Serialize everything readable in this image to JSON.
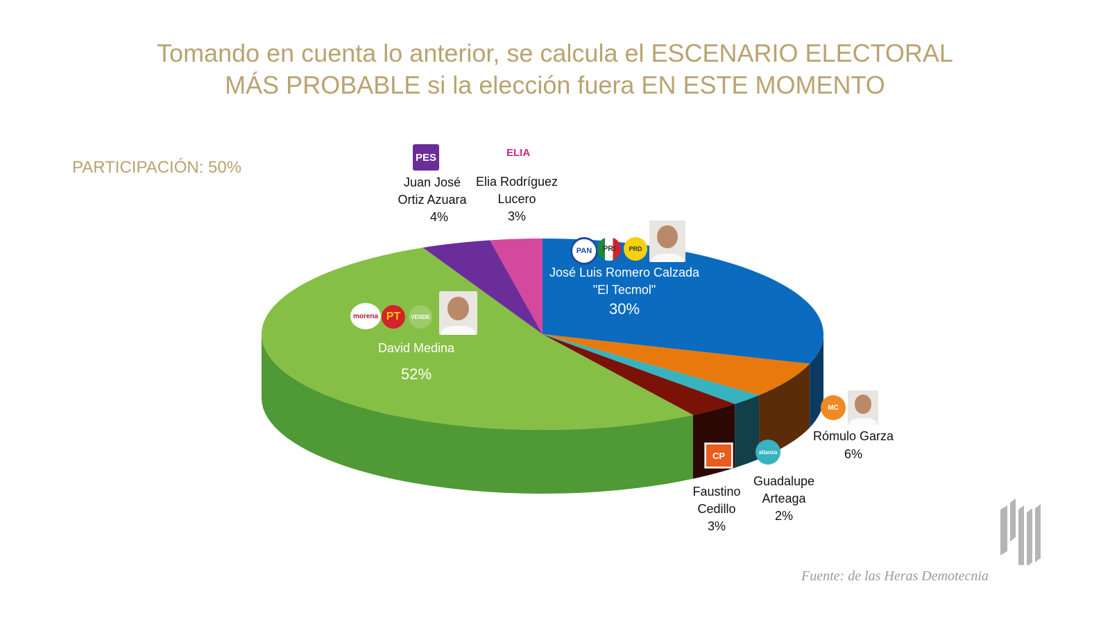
{
  "title_line1": "Tomando en cuenta lo anterior, se calcula el ESCENARIO ELECTORAL",
  "title_line2": "MÁS PROBABLE si la elección fuera EN ESTE MOMENTO",
  "participation": "PARTICIPACIÓN: 50%",
  "source": "Fuente: de las Heras Demotecnia",
  "logos": {
    "pes": "PES",
    "elia": "ELIA",
    "pan": "PAN",
    "pri": "PRI",
    "prd": "PRD",
    "morena": "morena",
    "pt": "PT",
    "verde": "VERDE",
    "alianza": "alianza",
    "mc": "MC",
    "pc": "CP"
  },
  "chart_data": {
    "type": "pie",
    "title": "Tomando en cuenta lo anterior, se calcula el ESCENARIO ELECTORAL MÁS PROBABLE si la elección fuera EN ESTE MOMENTO",
    "start": "12 o'clock, clockwise",
    "slices": [
      {
        "name": "José Luis Romero Calzada",
        "nick": "\"El Tecmol\"",
        "value": 30,
        "label": "30%",
        "color": "#0a6bbf",
        "side": "#0b3a63"
      },
      {
        "name": "Rómulo Garza",
        "value": 6,
        "label": "6%",
        "color": "#e8790d",
        "side": "#5a2c08"
      },
      {
        "name": "Guadalupe",
        "name2": "Arteaga",
        "value": 2,
        "label": "2%",
        "color": "#36b3bf",
        "side": "#123f48"
      },
      {
        "name": "Faustino",
        "name2": "Cedillo",
        "value": 3,
        "label": "3%",
        "color": "#7a1208",
        "side": "#2c0805"
      },
      {
        "name": "David Medina",
        "value": 52,
        "label": "52%",
        "color": "#86bf45",
        "side": "#4f9a36"
      },
      {
        "name": "Juan José",
        "name2": "Ortiz Azuara",
        "value": 4,
        "label": "4%",
        "color": "#6a2d9a",
        "side": "#3a1856"
      },
      {
        "name": "Elia Rodríguez",
        "name2": "Lucero",
        "value": 3,
        "label": "3%",
        "color": "#d4489e",
        "side": "#7a2258"
      }
    ]
  }
}
